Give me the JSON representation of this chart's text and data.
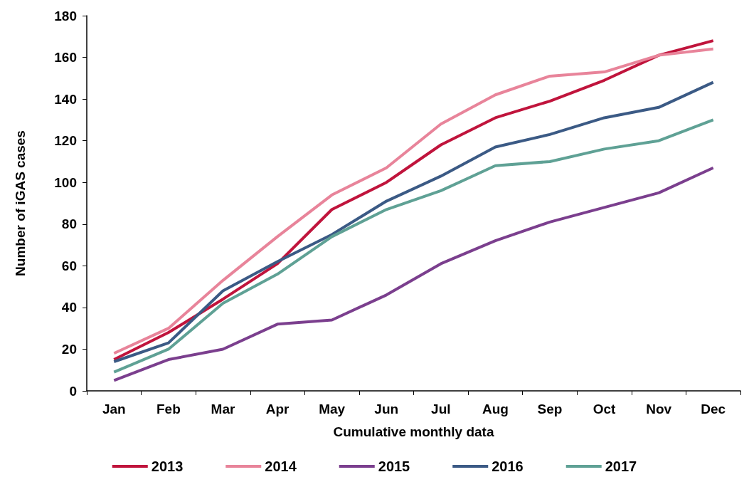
{
  "chart_data": {
    "type": "line",
    "xlabel": "Cumulative monthly data",
    "ylabel": "Number of iGAS cases",
    "categories": [
      "Jan",
      "Feb",
      "Mar",
      "Apr",
      "May",
      "Jun",
      "Jul",
      "Aug",
      "Sep",
      "Oct",
      "Nov",
      "Dec"
    ],
    "series": [
      {
        "name": "2013",
        "color": "#c0143c",
        "values": [
          15,
          28,
          44,
          61,
          87,
          100,
          118,
          131,
          139,
          149,
          161,
          168
        ]
      },
      {
        "name": "2014",
        "color": "#e8849a",
        "values": [
          18,
          30,
          53,
          74,
          94,
          107,
          128,
          142,
          151,
          153,
          161,
          164
        ]
      },
      {
        "name": "2015",
        "color": "#7b3f8e",
        "values": [
          5,
          15,
          20,
          32,
          34,
          46,
          61,
          72,
          81,
          88,
          95,
          107
        ]
      },
      {
        "name": "2016",
        "color": "#3b5a85",
        "values": [
          14,
          23,
          48,
          62,
          75,
          91,
          103,
          117,
          123,
          131,
          136,
          148
        ]
      },
      {
        "name": "2017",
        "color": "#5fa195",
        "values": [
          9,
          20,
          42,
          56,
          74,
          87,
          96,
          108,
          110,
          116,
          120,
          130
        ]
      }
    ],
    "ylim": [
      0,
      180
    ],
    "yticks": [
      0,
      20,
      40,
      60,
      80,
      100,
      120,
      140,
      160,
      180
    ],
    "grid": false,
    "legend": "bottom",
    "marker": "none",
    "line_style": "solid"
  }
}
